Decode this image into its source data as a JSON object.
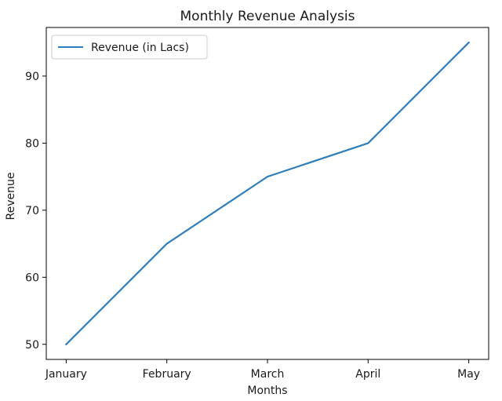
{
  "chart_data": {
    "type": "line",
    "title": "Monthly Revenue Analysis",
    "xlabel": "Months",
    "ylabel": "Revenue",
    "categories": [
      "January",
      "February",
      "March",
      "April",
      "May"
    ],
    "series": [
      {
        "name": "Revenue (in Lacs)",
        "values": [
          50,
          65,
          75,
          80,
          95
        ],
        "color": "#2f7ebc"
      }
    ],
    "ylim": [
      47.75,
      97.25
    ],
    "yticks": [
      50,
      60,
      70,
      80,
      90
    ],
    "grid": false,
    "legend_position": "top-left"
  }
}
